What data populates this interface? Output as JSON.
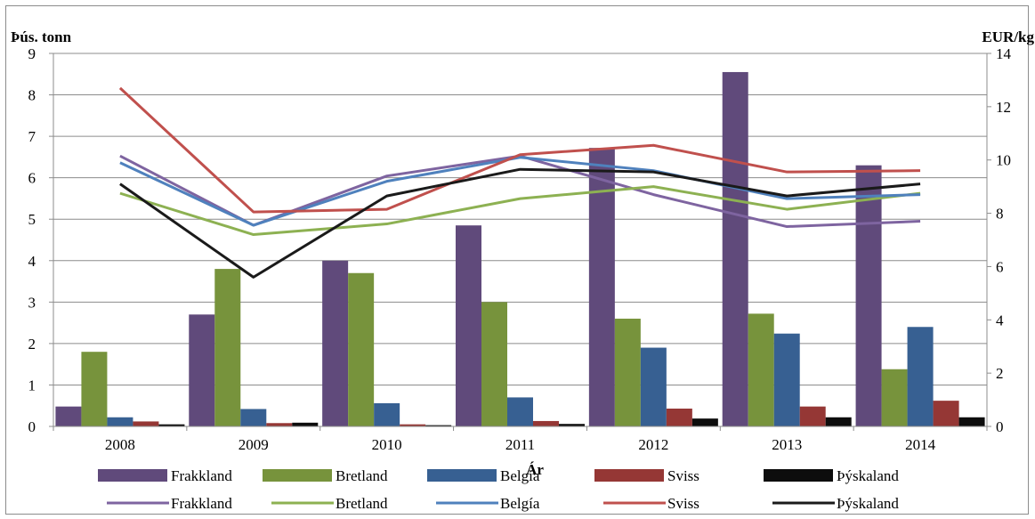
{
  "chart_data": {
    "type": "bar",
    "title": "",
    "xlabel": "Ár",
    "ylabel_left": "Þús. tonn",
    "ylabel_right": "EUR/kg",
    "categories": [
      "2008",
      "2009",
      "2010",
      "2011",
      "2012",
      "2013",
      "2014"
    ],
    "ylim_left": [
      0,
      9
    ],
    "ylim_right": [
      0,
      14
    ],
    "yticks_left": [
      "0",
      "1",
      "2",
      "3",
      "4",
      "5",
      "6",
      "7",
      "8",
      "9"
    ],
    "yticks_right": [
      "0",
      "2",
      "4",
      "6",
      "8",
      "10",
      "12",
      "14"
    ],
    "grid": true,
    "legend_position": "bottom",
    "bar_series": [
      {
        "name": "Frakkland",
        "color": "#604A7B",
        "values": [
          0.48,
          2.7,
          4.0,
          4.85,
          6.72,
          8.55,
          6.3
        ]
      },
      {
        "name": "Bretland",
        "color": "#77933C",
        "values": [
          1.8,
          3.8,
          3.7,
          3.0,
          2.6,
          2.72,
          1.38
        ]
      },
      {
        "name": "Belgía",
        "color": "#376092",
        "values": [
          0.22,
          0.42,
          0.56,
          0.7,
          1.9,
          2.24,
          2.4
        ]
      },
      {
        "name": "Sviss",
        "color": "#953735",
        "values": [
          0.12,
          0.08,
          0.05,
          0.13,
          0.43,
          0.48,
          0.62
        ]
      },
      {
        "name": "Þýskaland",
        "color": "#0d0d0d",
        "values": [
          0.05,
          0.09,
          0.03,
          0.06,
          0.19,
          0.22,
          0.22
        ]
      }
    ],
    "line_series": [
      {
        "name": "Frakkland",
        "color": "#7E64A0",
        "axis": "right",
        "values": [
          10.15,
          7.55,
          9.4,
          10.15,
          8.7,
          7.5,
          7.7
        ]
      },
      {
        "name": "Bretland",
        "color": "#8DB152",
        "axis": "right",
        "values": [
          8.75,
          7.2,
          7.6,
          8.55,
          9.0,
          8.15,
          8.75
        ]
      },
      {
        "name": "Belgía",
        "color": "#4F81BD",
        "axis": "right",
        "values": [
          9.9,
          7.55,
          9.2,
          10.1,
          9.6,
          8.55,
          8.7
        ]
      },
      {
        "name": "Sviss",
        "color": "#C0504D",
        "axis": "right",
        "values": [
          12.7,
          8.05,
          8.15,
          10.2,
          10.55,
          9.55,
          9.6
        ]
      },
      {
        "name": "Þýskaland",
        "color": "#1a1a1a",
        "axis": "right",
        "values": [
          9.1,
          5.6,
          8.65,
          9.65,
          9.55,
          8.65,
          9.1
        ]
      }
    ]
  }
}
